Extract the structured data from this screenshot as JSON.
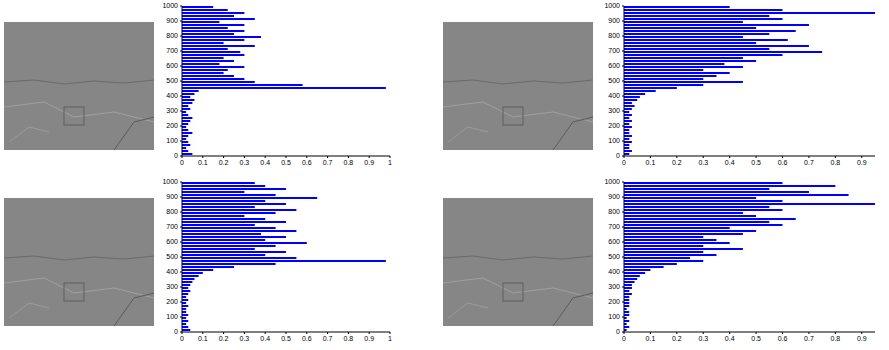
{
  "chart_data": [
    {
      "type": "bar",
      "orientation": "horizontal",
      "color": "#0000ff",
      "x": [
        10,
        30,
        50,
        70,
        90,
        110,
        130,
        150,
        170,
        190,
        210,
        230,
        250,
        270,
        290,
        310,
        330,
        350,
        370,
        390,
        410,
        430,
        450,
        470,
        490,
        510,
        530,
        550,
        570,
        590,
        610,
        630,
        650,
        670,
        690,
        710,
        730,
        750,
        770,
        790,
        810,
        830,
        850,
        870,
        890,
        910,
        930,
        950,
        970,
        990
      ],
      "values": [
        0.05,
        0.03,
        0.02,
        0.04,
        0.03,
        0.02,
        0.03,
        0.05,
        0.03,
        0.02,
        0.03,
        0.04,
        0.05,
        0.03,
        0.02,
        0.04,
        0.03,
        0.05,
        0.06,
        0.04,
        0.06,
        0.08,
        0.98,
        0.58,
        0.35,
        0.3,
        0.25,
        0.2,
        0.22,
        0.3,
        0.18,
        0.25,
        0.2,
        0.3,
        0.28,
        0.22,
        0.35,
        0.2,
        0.3,
        0.38,
        0.25,
        0.3,
        0.22,
        0.3,
        0.18,
        0.35,
        0.25,
        0.3,
        0.22,
        0.15
      ],
      "xlim": [
        0,
        1000
      ],
      "xticks": [
        0,
        100,
        200,
        300,
        400,
        500,
        600,
        700,
        800,
        900,
        1000
      ],
      "ylim": [
        0,
        1
      ],
      "yticks": [
        0,
        0.1,
        0.2,
        0.3,
        0.4,
        0.5,
        0.6,
        0.7,
        0.8,
        0.9,
        1
      ]
    },
    {
      "type": "bar",
      "orientation": "horizontal",
      "color": "#0000ff",
      "x": [
        10,
        30,
        50,
        70,
        90,
        110,
        130,
        150,
        170,
        190,
        210,
        230,
        250,
        270,
        290,
        310,
        330,
        350,
        370,
        390,
        410,
        430,
        450,
        470,
        490,
        510,
        530,
        550,
        570,
        590,
        610,
        630,
        650,
        670,
        690,
        710,
        730,
        750,
        770,
        790,
        810,
        830,
        850,
        870,
        890,
        910,
        930,
        950,
        970,
        990
      ],
      "values": [
        0.02,
        0.03,
        0.02,
        0.02,
        0.03,
        0.02,
        0.03,
        0.02,
        0.02,
        0.03,
        0.02,
        0.03,
        0.02,
        0.03,
        0.02,
        0.03,
        0.04,
        0.03,
        0.05,
        0.06,
        0.08,
        0.12,
        0.2,
        0.3,
        0.45,
        0.3,
        0.35,
        0.4,
        0.3,
        0.45,
        0.38,
        0.5,
        0.45,
        0.6,
        0.75,
        0.55,
        0.7,
        0.5,
        0.62,
        0.45,
        0.55,
        0.65,
        0.5,
        0.7,
        0.45,
        0.6,
        0.55,
        0.95,
        0.6,
        0.4
      ],
      "xlim": [
        0,
        1000
      ],
      "xticks": [
        0,
        100,
        200,
        300,
        400,
        500,
        600,
        700,
        800,
        900,
        1000
      ],
      "ylim": [
        0,
        0.95
      ],
      "yticks": [
        0,
        0.1,
        0.2,
        0.3,
        0.4,
        0.5,
        0.6,
        0.7,
        0.8,
        0.9
      ]
    },
    {
      "type": "bar",
      "orientation": "horizontal",
      "color": "#0000ff",
      "x": [
        10,
        30,
        50,
        70,
        90,
        110,
        130,
        150,
        170,
        190,
        210,
        230,
        250,
        270,
        290,
        310,
        330,
        350,
        370,
        390,
        410,
        430,
        450,
        470,
        490,
        510,
        530,
        550,
        570,
        590,
        610,
        630,
        650,
        670,
        690,
        710,
        730,
        750,
        770,
        790,
        810,
        830,
        850,
        870,
        890,
        910,
        930,
        950,
        970,
        990
      ],
      "values": [
        0.04,
        0.03,
        0.02,
        0.03,
        0.02,
        0.03,
        0.02,
        0.02,
        0.03,
        0.02,
        0.03,
        0.02,
        0.03,
        0.04,
        0.03,
        0.04,
        0.05,
        0.06,
        0.08,
        0.1,
        0.15,
        0.25,
        0.45,
        0.98,
        0.55,
        0.4,
        0.5,
        0.35,
        0.45,
        0.6,
        0.4,
        0.5,
        0.38,
        0.55,
        0.45,
        0.35,
        0.5,
        0.4,
        0.3,
        0.45,
        0.55,
        0.35,
        0.5,
        0.4,
        0.65,
        0.45,
        0.3,
        0.5,
        0.4,
        0.35
      ],
      "xlim": [
        0,
        1000
      ],
      "xticks": [
        0,
        100,
        200,
        300,
        400,
        500,
        600,
        700,
        800,
        900,
        1000
      ],
      "ylim": [
        0,
        1
      ],
      "yticks": [
        0,
        0.1,
        0.2,
        0.3,
        0.4,
        0.5,
        0.6,
        0.7,
        0.8,
        0.9,
        1
      ]
    },
    {
      "type": "bar",
      "orientation": "horizontal",
      "color": "#0000ff",
      "x": [
        10,
        30,
        50,
        70,
        90,
        110,
        130,
        150,
        170,
        190,
        210,
        230,
        250,
        270,
        290,
        310,
        330,
        350,
        370,
        390,
        410,
        430,
        450,
        470,
        490,
        510,
        530,
        550,
        570,
        590,
        610,
        630,
        650,
        670,
        690,
        710,
        730,
        750,
        770,
        790,
        810,
        830,
        850,
        870,
        890,
        910,
        930,
        950,
        970,
        990
      ],
      "values": [
        0.01,
        0.02,
        0.01,
        0.02,
        0.01,
        0.02,
        0.02,
        0.01,
        0.02,
        0.02,
        0.02,
        0.02,
        0.03,
        0.02,
        0.03,
        0.03,
        0.04,
        0.05,
        0.06,
        0.08,
        0.1,
        0.15,
        0.2,
        0.3,
        0.25,
        0.35,
        0.3,
        0.45,
        0.3,
        0.4,
        0.35,
        0.3,
        0.45,
        0.5,
        0.4,
        0.6,
        0.55,
        0.65,
        0.5,
        0.45,
        0.6,
        0.55,
        0.95,
        0.6,
        0.5,
        0.85,
        0.7,
        0.55,
        0.8,
        0.6
      ],
      "xlim": [
        0,
        1000
      ],
      "xticks": [
        0,
        100,
        200,
        300,
        400,
        500,
        600,
        700,
        800,
        900,
        1000
      ],
      "ylim": [
        0,
        0.95
      ],
      "yticks": [
        0,
        0.1,
        0.2,
        0.3,
        0.4,
        0.5,
        0.6,
        0.7,
        0.8,
        0.9
      ]
    }
  ]
}
